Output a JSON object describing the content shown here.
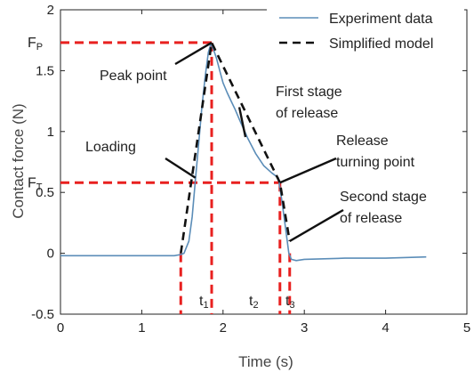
{
  "chart_data": {
    "type": "line",
    "xlabel": "Time (s)",
    "ylabel": "Contact force (N)",
    "xlim": [
      0,
      5
    ],
    "ylim": [
      -0.5,
      2
    ],
    "x_ticks": [
      "0",
      "1",
      "2",
      "3",
      "4",
      "5"
    ],
    "y_ticks": [
      "-0.5",
      "0",
      "0.5",
      "1",
      "1.5",
      "2"
    ],
    "legend_position": "top-right",
    "series": [
      {
        "name": "Experiment data",
        "style": "solid",
        "color": "#5b8db8",
        "x": [
          0,
          0.5,
          1.0,
          1.4,
          1.48,
          1.52,
          1.58,
          1.62,
          1.66,
          1.7,
          1.74,
          1.78,
          1.82,
          1.85,
          1.88,
          1.92,
          1.96,
          2.0,
          2.05,
          2.1,
          2.15,
          2.2,
          2.3,
          2.4,
          2.5,
          2.6,
          2.68,
          2.72,
          2.76,
          2.79,
          2.81,
          2.84,
          2.9,
          3.0,
          3.5,
          4.0,
          4.5
        ],
        "y": [
          -0.02,
          -0.02,
          -0.02,
          -0.02,
          -0.01,
          0.0,
          0.1,
          0.3,
          0.6,
          0.9,
          1.2,
          1.45,
          1.65,
          1.72,
          1.68,
          1.6,
          1.5,
          1.4,
          1.32,
          1.25,
          1.18,
          1.1,
          0.95,
          0.82,
          0.72,
          0.66,
          0.62,
          0.45,
          0.25,
          0.1,
          0.0,
          -0.05,
          -0.06,
          -0.05,
          -0.04,
          -0.04,
          -0.03
        ]
      },
      {
        "name": "Simplified model",
        "style": "dashed",
        "color": "#111111",
        "x": [
          1.48,
          1.86,
          2.7,
          2.82
        ],
        "y": [
          0.0,
          1.73,
          0.58,
          0.1
        ]
      }
    ],
    "reference_lines": {
      "color": "#e8201f",
      "peak": {
        "x": 1.86,
        "y": 1.73
      },
      "turning": {
        "x": 2.7,
        "y": 0.58
      },
      "t_markers_x": [
        1.48,
        1.86,
        2.7,
        2.82
      ]
    },
    "annotations": [
      {
        "text": "Peak point",
        "pointer": [
          1.86,
          1.73
        ]
      },
      {
        "text": "First stage",
        "line2": "of release",
        "pointer": [
          2.2,
          1.2
        ]
      },
      {
        "text": "Loading",
        "pointer": [
          1.66,
          0.62
        ]
      },
      {
        "text": "Release",
        "line2": "turning point",
        "pointer": [
          2.7,
          0.58
        ]
      },
      {
        "text": "Second stage",
        "line2": "of release",
        "pointer": [
          2.82,
          0.1
        ]
      }
    ],
    "level_labels": {
      "peak": "F",
      "peak_sub": "P",
      "turning": "F",
      "turning_sub": "T"
    },
    "time_labels": [
      {
        "main": "t",
        "sub": "1"
      },
      {
        "main": "t",
        "sub": "2"
      },
      {
        "main": "t",
        "sub": "3"
      }
    ]
  }
}
